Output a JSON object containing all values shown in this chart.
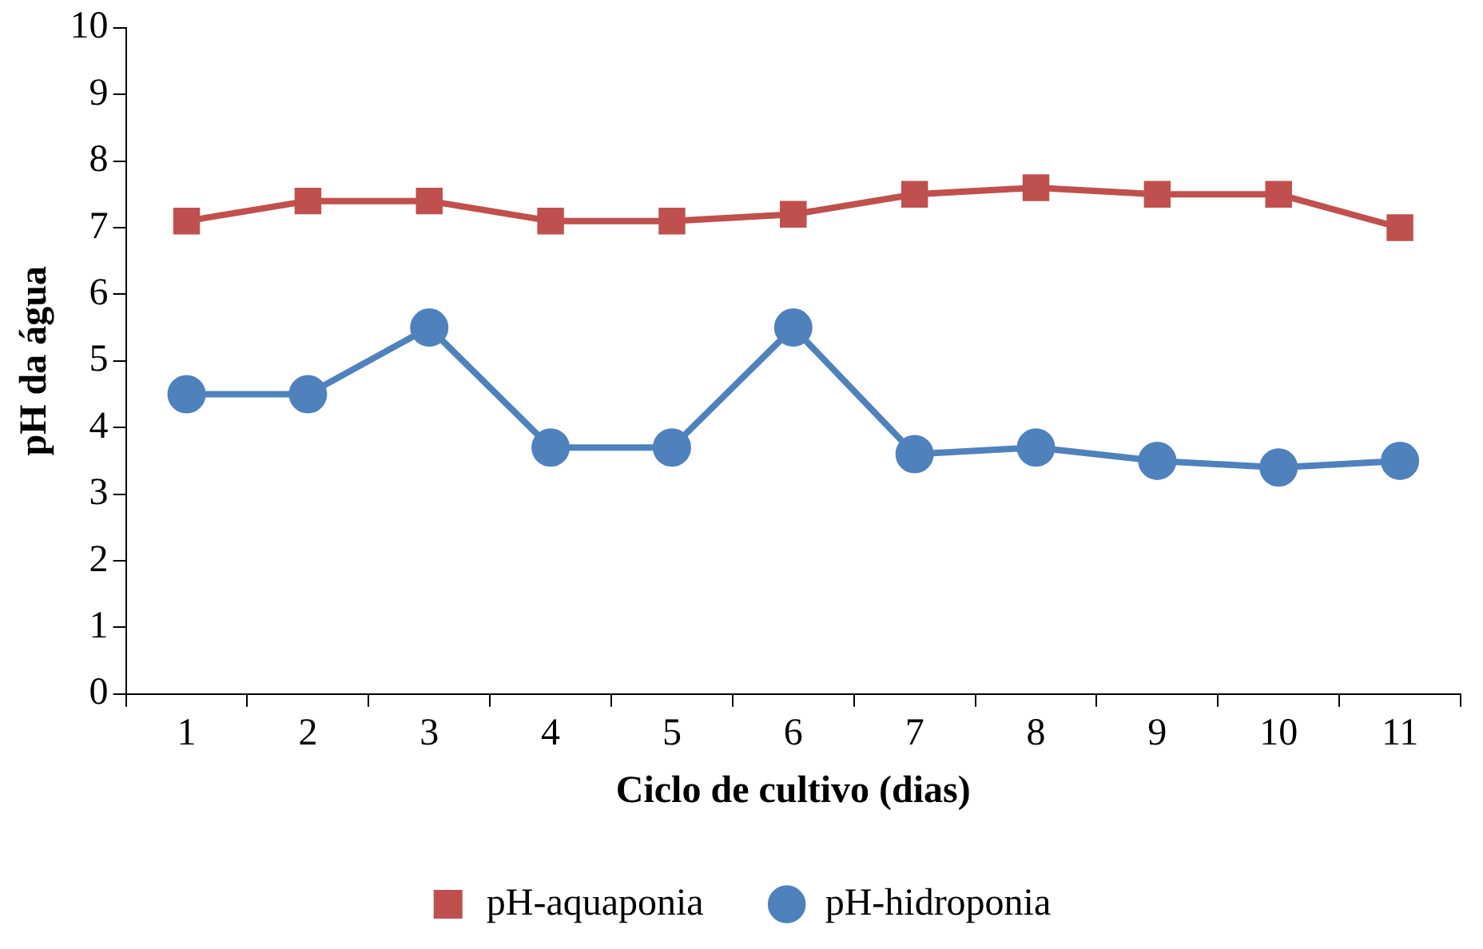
{
  "chart_data": {
    "type": "line",
    "xlabel": "Ciclo de cultivo (dias)",
    "ylabel": "pH da água",
    "categories": [
      "1",
      "2",
      "3",
      "4",
      "5",
      "6",
      "7",
      "8",
      "9",
      "10",
      "11"
    ],
    "series": [
      {
        "name": "pH-aquaponia",
        "color": "#c0504d",
        "marker": "square",
        "values": [
          7.1,
          7.4,
          7.4,
          7.1,
          7.1,
          7.2,
          7.5,
          7.6,
          7.5,
          7.5,
          7.0
        ]
      },
      {
        "name": "pH-hidroponia",
        "color": "#4f81bd",
        "marker": "circle",
        "values": [
          4.5,
          4.5,
          5.5,
          3.7,
          3.7,
          5.5,
          3.6,
          3.7,
          3.5,
          3.4,
          3.5
        ]
      }
    ],
    "ylim": [
      0,
      10
    ],
    "yticks": [
      0,
      1,
      2,
      3,
      4,
      5,
      6,
      7,
      8,
      9,
      10
    ],
    "grid": false,
    "legend": "bottom",
    "line_style": "solid"
  }
}
